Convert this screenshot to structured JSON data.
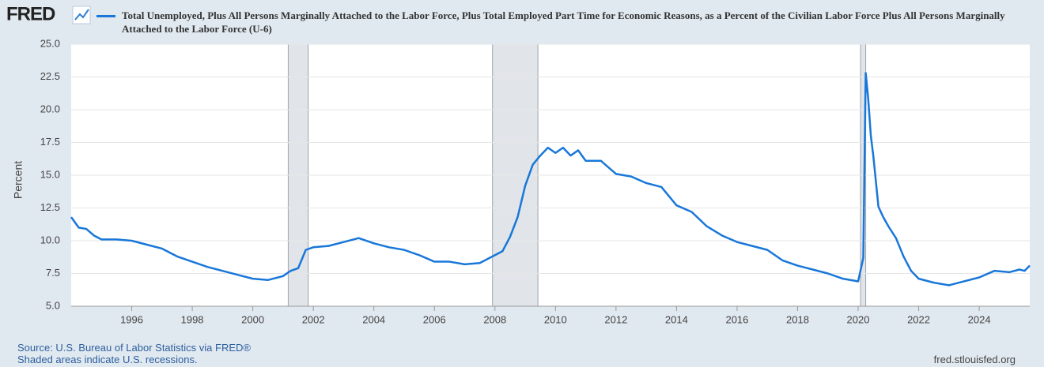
{
  "chart_data": {
    "type": "line",
    "logo": "FRED",
    "ylabel": "Percent",
    "source": "Source: U.S. Bureau of Labor Statistics via FRED®",
    "note": "Shaded areas indicate U.S. recessions.",
    "site": "fred.stlouisfed.org",
    "xlim": [
      1994.0,
      2025.67
    ],
    "ylim": [
      5.0,
      25.0
    ],
    "xticks": [
      1996,
      1998,
      2000,
      2002,
      2004,
      2006,
      2008,
      2010,
      2012,
      2014,
      2016,
      2018,
      2020,
      2022,
      2024
    ],
    "yticks": [
      {
        "value": 5,
        "label": "5.0"
      },
      {
        "value": 7.5,
        "label": "7.5"
      },
      {
        "value": 10,
        "label": "10.0"
      },
      {
        "value": 12.5,
        "label": "12.5"
      },
      {
        "value": 15,
        "label": "15.0"
      },
      {
        "value": 17.5,
        "label": "17.5"
      },
      {
        "value": 20,
        "label": "20.0"
      },
      {
        "value": 22.5,
        "label": "22.5"
      },
      {
        "value": 25,
        "label": "25.0"
      }
    ],
    "grid": true,
    "recessions": [
      [
        2001.17,
        2001.83
      ],
      [
        2007.92,
        2009.42
      ],
      [
        2020.08,
        2020.25
      ]
    ],
    "recession_color": "#e1e5ea",
    "x": [
      1994.0,
      1994.25,
      1994.5,
      1994.75,
      1995.0,
      1995.5,
      1996.0,
      1996.5,
      1997.0,
      1997.5,
      1998.0,
      1998.5,
      1999.0,
      1999.5,
      2000.0,
      2000.5,
      2001.0,
      2001.25,
      2001.5,
      2001.75,
      2002.0,
      2002.5,
      2003.0,
      2003.5,
      2004.0,
      2004.5,
      2005.0,
      2005.5,
      2006.0,
      2006.5,
      2007.0,
      2007.5,
      2007.92,
      2008.25,
      2008.5,
      2008.75,
      2009.0,
      2009.25,
      2009.5,
      2009.75,
      2010.0,
      2010.25,
      2010.5,
      2010.75,
      2011.0,
      2011.5,
      2012.0,
      2012.5,
      2013.0,
      2013.5,
      2014.0,
      2014.5,
      2015.0,
      2015.5,
      2016.0,
      2016.5,
      2017.0,
      2017.5,
      2018.0,
      2018.5,
      2019.0,
      2019.5,
      2020.0,
      2020.17,
      2020.25,
      2020.33,
      2020.42,
      2020.5,
      2020.67,
      2020.83,
      2021.0,
      2021.25,
      2021.5,
      2021.75,
      2022.0,
      2022.5,
      2023.0,
      2023.5,
      2024.0,
      2024.5,
      2025.0,
      2025.33,
      2025.5,
      2025.67
    ],
    "series": [
      {
        "name": "Total Unemployed, Plus All Persons Marginally Attached to the Labor Force, Plus Total Employed Part Time for Economic Reasons, as a Percent of the Civilian Labor Force Plus All Persons Marginally Attached to the Labor Force (U-6)",
        "color": "#1877d9",
        "values": [
          11.8,
          11.0,
          10.9,
          10.4,
          10.1,
          10.1,
          10.0,
          9.7,
          9.4,
          8.8,
          8.4,
          8.0,
          7.7,
          7.4,
          7.1,
          7.0,
          7.3,
          7.7,
          7.9,
          9.3,
          9.5,
          9.6,
          9.9,
          10.2,
          9.8,
          9.5,
          9.3,
          8.9,
          8.4,
          8.4,
          8.2,
          8.3,
          8.8,
          9.2,
          10.3,
          11.8,
          14.2,
          15.8,
          16.5,
          17.1,
          16.7,
          17.1,
          16.5,
          16.9,
          16.1,
          16.1,
          15.1,
          14.9,
          14.4,
          14.1,
          12.7,
          12.2,
          11.1,
          10.4,
          9.9,
          9.6,
          9.3,
          8.5,
          8.1,
          7.8,
          7.5,
          7.1,
          6.9,
          8.7,
          22.8,
          20.9,
          18.0,
          16.5,
          12.6,
          11.8,
          11.1,
          10.2,
          8.8,
          7.7,
          7.1,
          6.8,
          6.6,
          6.9,
          7.2,
          7.7,
          7.6,
          7.8,
          7.7,
          8.1
        ]
      }
    ]
  }
}
